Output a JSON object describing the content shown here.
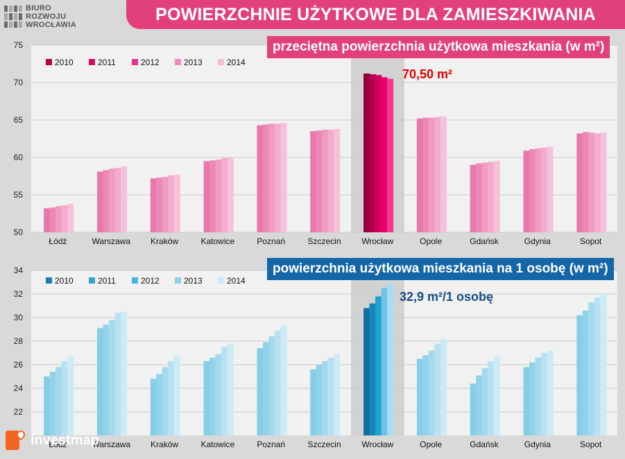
{
  "header": {
    "title": "POWIERZCHNIE UŻYTKOWE DLA ZAMIESZKIWANIA",
    "logo_lines": [
      "BIURO",
      "ROZWOJU",
      "WROCŁAWIA"
    ]
  },
  "footer": {
    "brand": "investmap"
  },
  "colors": {
    "pink_series": [
      "#b8004a",
      "#d30f60",
      "#e8318a",
      "#f08ab8",
      "#f6bed8"
    ],
    "pink_highlight": [
      "#920039",
      "#b3004f",
      "#d4005f",
      "#e7006c",
      "#f03b8f"
    ],
    "pink_regular": [
      "#e778a9",
      "#ec88b4",
      "#f09bc0",
      "#f3accc",
      "#f6c1da"
    ],
    "blue_series": [
      "#1b7fb6",
      "#36a4cf",
      "#4bb6dd",
      "#93d0ec",
      "#cfe9f6"
    ],
    "blue_highlight": [
      "#0f6fa0",
      "#1a86b5",
      "#22a2d1",
      "#6cc5e8",
      "#a7dcf2"
    ],
    "blue_regular": [
      "#86cde7",
      "#93d3ea",
      "#a4daee",
      "#b8e2f2",
      "#cdebf6"
    ]
  },
  "chart_data": [
    {
      "type": "bar",
      "title": "przeciętna powierzchnia użytkowa  mieszkania (w m²)",
      "annotation": "70,50 m²",
      "categories": [
        "Łódź",
        "Warszawa",
        "Kraków",
        "Katowice",
        "Poznań",
        "Szczecin",
        "Wrocław",
        "Opole",
        "Gdańsk",
        "Gdynia",
        "Sopot"
      ],
      "highlight": "Wrocław",
      "ylim": [
        50,
        75
      ],
      "yticks": [
        50,
        55,
        60,
        65,
        70,
        75
      ],
      "legend_position": "top-left",
      "series": [
        {
          "name": "2010",
          "values": [
            53.2,
            58.1,
            57.2,
            59.5,
            64.3,
            63.5,
            71.2,
            65.2,
            59.0,
            60.9,
            63.2
          ]
        },
        {
          "name": "2011",
          "values": [
            53.3,
            58.3,
            57.3,
            59.6,
            64.4,
            63.6,
            71.1,
            65.3,
            59.2,
            61.1,
            63.4
          ]
        },
        {
          "name": "2012",
          "values": [
            53.5,
            58.5,
            57.4,
            59.7,
            64.5,
            63.7,
            71.0,
            65.3,
            59.3,
            61.2,
            63.3
          ]
        },
        {
          "name": "2013",
          "values": [
            53.6,
            58.6,
            57.6,
            59.9,
            64.5,
            63.7,
            70.7,
            65.4,
            59.4,
            61.3,
            63.2
          ]
        },
        {
          "name": "2014",
          "values": [
            53.8,
            58.8,
            57.7,
            60.0,
            64.6,
            63.8,
            70.5,
            65.5,
            59.5,
            61.4,
            63.3
          ]
        }
      ]
    },
    {
      "type": "bar",
      "title": "powierzchnia użytkowa mieszkania na 1 osobę (w m²)",
      "annotation": "32,9 m²/1 osobę",
      "categories": [
        "Łódź",
        "Warszawa",
        "Kraków",
        "Katowice",
        "Poznań",
        "Szczecin",
        "Wrocław",
        "Opole",
        "Gdańsk",
        "Gdynia",
        "Sopot"
      ],
      "highlight": "Wrocław",
      "ylim": [
        20,
        34
      ],
      "yticks": [
        22,
        24,
        26,
        28,
        30,
        32,
        34
      ],
      "legend_position": "top-left",
      "series": [
        {
          "name": "2010",
          "values": [
            25.0,
            29.1,
            24.8,
            26.3,
            27.4,
            25.6,
            30.8,
            26.5,
            24.4,
            25.8,
            30.2
          ]
        },
        {
          "name": "2011",
          "values": [
            25.4,
            29.4,
            25.2,
            26.6,
            27.9,
            26.0,
            31.2,
            26.8,
            25.1,
            26.2,
            30.6
          ]
        },
        {
          "name": "2012",
          "values": [
            25.8,
            29.8,
            25.8,
            26.9,
            28.4,
            26.3,
            31.8,
            27.2,
            25.7,
            26.6,
            31.3
          ]
        },
        {
          "name": "2013",
          "values": [
            26.3,
            30.4,
            26.3,
            27.5,
            28.9,
            26.6,
            32.5,
            27.8,
            26.3,
            27.0,
            31.7
          ]
        },
        {
          "name": "2014",
          "values": [
            26.7,
            30.5,
            26.8,
            27.8,
            29.3,
            26.9,
            32.9,
            28.2,
            26.7,
            27.2,
            32.0
          ]
        }
      ]
    }
  ]
}
